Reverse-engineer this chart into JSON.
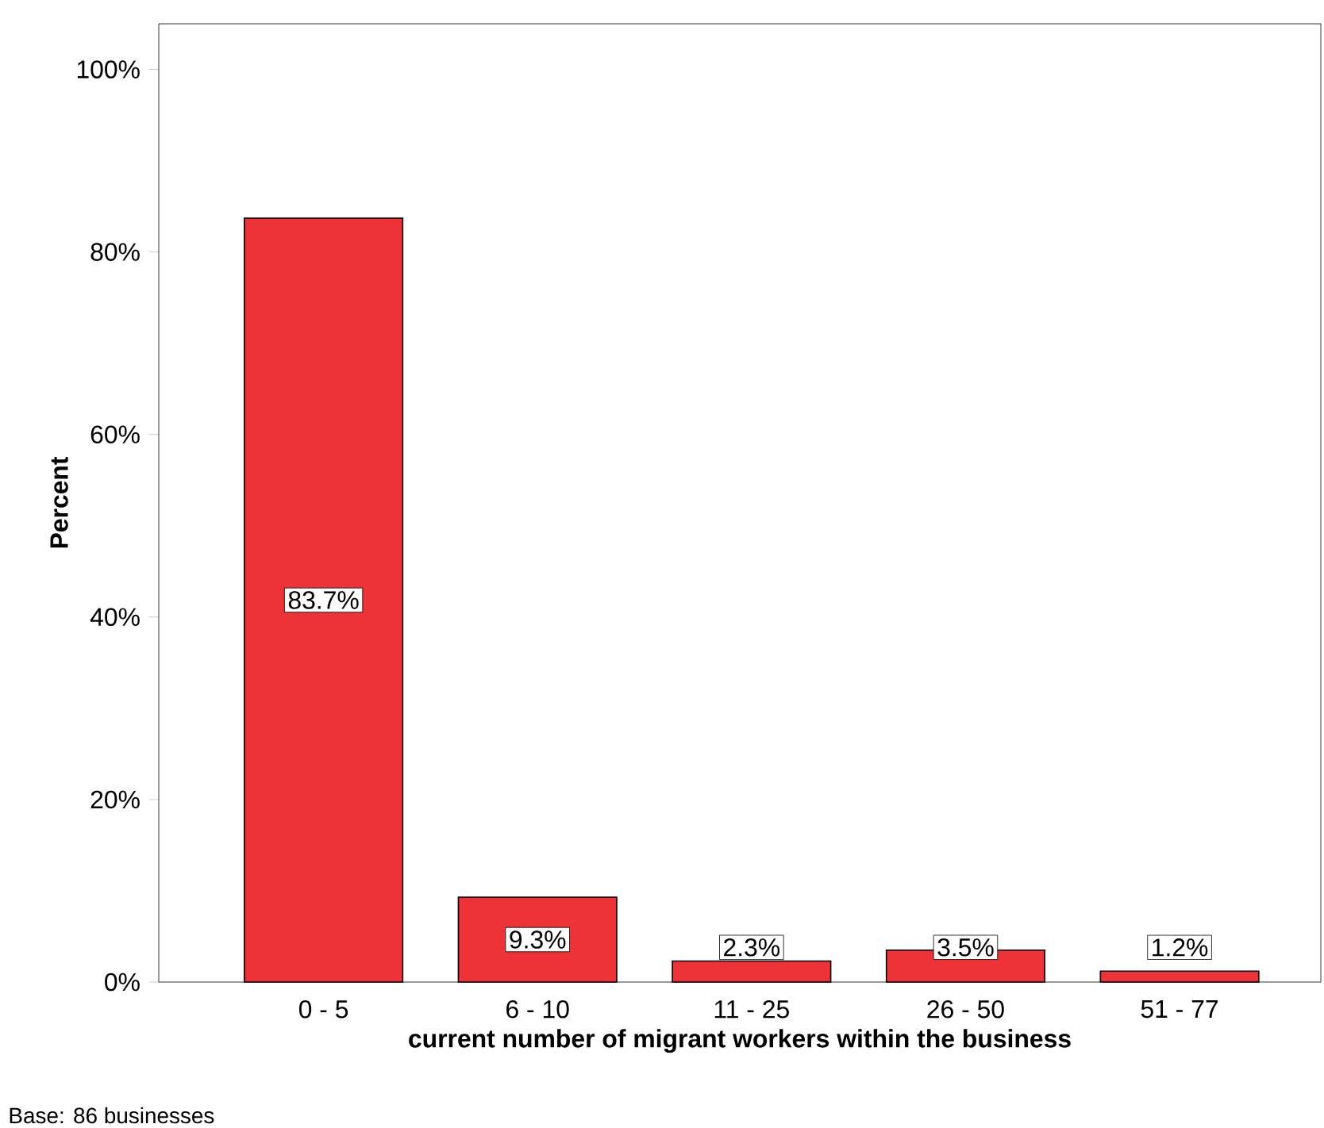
{
  "chart_data": {
    "type": "bar",
    "categories": [
      "0 - 5",
      "6 - 10",
      "11 - 25",
      "26 - 50",
      "51 - 77"
    ],
    "values": [
      83.7,
      9.3,
      2.3,
      3.5,
      1.2
    ],
    "value_labels": [
      "83.7%",
      "9.3%",
      "2.3%",
      "3.5%",
      "1.2%"
    ],
    "color": "#ee3338",
    "xlabel": "current number of migrant workers within the business",
    "ylabel": "Percent",
    "ylim": [
      0,
      105
    ],
    "yticks": [
      {
        "value": 0,
        "label": "0%"
      },
      {
        "value": 20,
        "label": "20%"
      },
      {
        "value": 40,
        "label": "40%"
      },
      {
        "value": 60,
        "label": "60%"
      },
      {
        "value": 80,
        "label": "80%"
      },
      {
        "value": 100,
        "label": "100%"
      }
    ],
    "grid": false,
    "annotations": [
      "Base: 86 businesses"
    ]
  }
}
